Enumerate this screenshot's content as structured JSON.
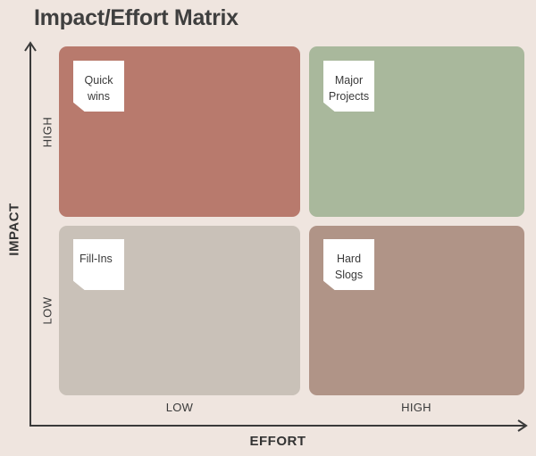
{
  "title": "Impact/Effort Matrix",
  "axes": {
    "y_title": "IMPACT",
    "x_title": "EFFORT",
    "y_high": "HIGH",
    "y_low": "LOW",
    "x_low": "LOW",
    "x_high": "HIGH"
  },
  "quadrants": [
    {
      "label": "Quick\nwins",
      "color": "#b87a6d"
    },
    {
      "label": "Major\nProjects",
      "color": "#a9b89c"
    },
    {
      "label": "Fill-Ins",
      "color": "#c9c1b8"
    },
    {
      "label": "Hard\nSlogs",
      "color": "#b09487"
    }
  ]
}
